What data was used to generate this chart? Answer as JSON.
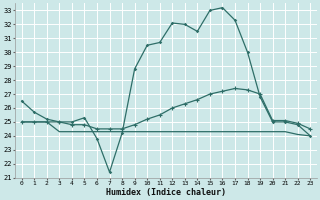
{
  "xlabel": "Humidex (Indice chaleur)",
  "xlim": [
    -0.5,
    23.5
  ],
  "ylim": [
    21,
    33.5
  ],
  "yticks": [
    21,
    22,
    23,
    24,
    25,
    26,
    27,
    28,
    29,
    30,
    31,
    32,
    33
  ],
  "xticks": [
    0,
    1,
    2,
    3,
    4,
    5,
    6,
    7,
    8,
    9,
    10,
    11,
    12,
    13,
    14,
    15,
    16,
    17,
    18,
    19,
    20,
    21,
    22,
    23
  ],
  "bg_color": "#cde8e8",
  "grid_color": "#ffffff",
  "line_color": "#2e6e68",
  "line1_y": [
    26.5,
    25.7,
    25.2,
    25.0,
    25.0,
    25.3,
    23.8,
    21.4,
    24.2,
    28.8,
    30.5,
    30.7,
    32.1,
    32.0,
    31.5,
    33.0,
    33.2,
    32.3,
    30.0,
    26.8,
    25.0,
    25.0,
    24.8,
    24.0
  ],
  "line2_y": [
    25.0,
    25.0,
    25.0,
    25.0,
    24.8,
    24.8,
    24.5,
    24.5,
    24.5,
    24.8,
    25.2,
    25.5,
    26.0,
    26.3,
    26.6,
    27.0,
    27.2,
    27.4,
    27.3,
    27.0,
    25.1,
    25.1,
    24.9,
    24.5
  ],
  "line3_y": [
    25.0,
    25.0,
    25.0,
    24.3,
    24.3,
    24.3,
    24.3,
    24.3,
    24.3,
    24.3,
    24.3,
    24.3,
    24.3,
    24.3,
    24.3,
    24.3,
    24.3,
    24.3,
    24.3,
    24.3,
    24.3,
    24.3,
    24.1,
    24.0
  ]
}
